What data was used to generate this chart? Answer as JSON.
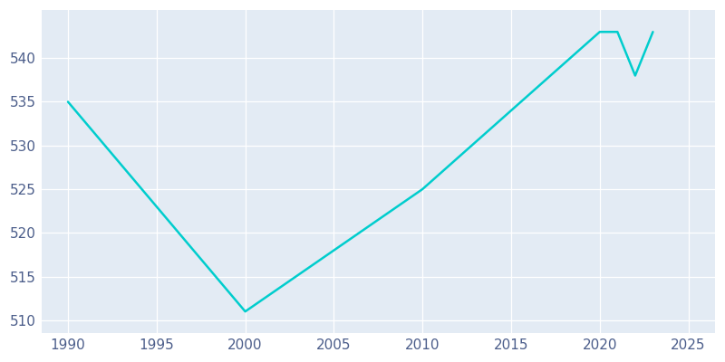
{
  "years": [
    1990,
    2000,
    2010,
    2020,
    2021,
    2022,
    2023
  ],
  "population": [
    535,
    511,
    525,
    543,
    543,
    538,
    543
  ],
  "line_color": "#00CDCD",
  "bg_color": "#E3EBF4",
  "plot_bg_color": "#E3EBF4",
  "outer_bg_color": "#FFFFFF",
  "grid_color": "#FFFFFF",
  "tick_color": "#4B5D8A",
  "ylim": [
    508.5,
    545.5
  ],
  "xlim": [
    1988.5,
    2026.5
  ],
  "yticks": [
    510,
    515,
    520,
    525,
    530,
    535,
    540
  ],
  "xticks": [
    1990,
    1995,
    2000,
    2005,
    2010,
    2015,
    2020,
    2025
  ],
  "tick_fontsize": 11,
  "linewidth": 1.8
}
